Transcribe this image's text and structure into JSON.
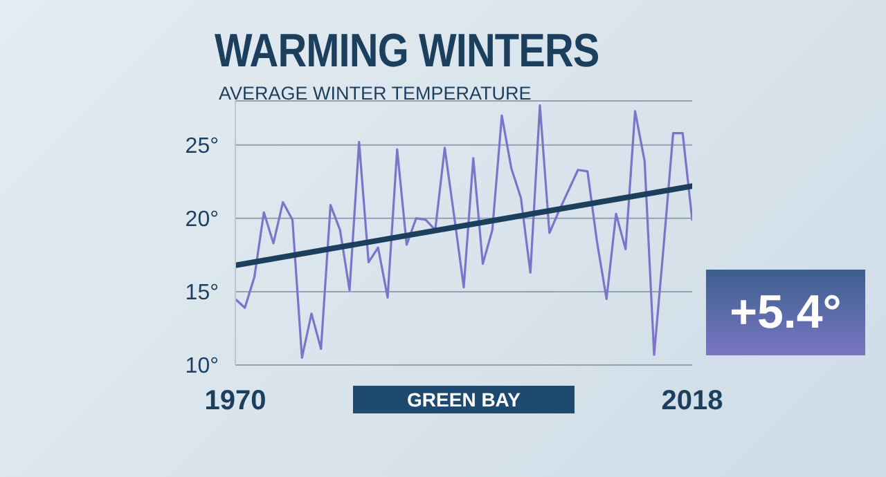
{
  "chart_data": {
    "type": "line",
    "title": "WARMING WINTERS",
    "subtitle": "AVERAGE WINTER TEMPERATURE",
    "annotations": [
      "GREEN BAY",
      "+5.4°"
    ],
    "x": [
      1970,
      1971,
      1972,
      1973,
      1974,
      1975,
      1976,
      1977,
      1978,
      1979,
      1980,
      1981,
      1982,
      1983,
      1984,
      1985,
      1986,
      1987,
      1988,
      1989,
      1990,
      1991,
      1992,
      1993,
      1994,
      1995,
      1996,
      1997,
      1998,
      1999,
      2000,
      2001,
      2002,
      2003,
      2004,
      2005,
      2006,
      2007,
      2008,
      2009,
      2010,
      2011,
      2012,
      2013,
      2014,
      2015,
      2016,
      2017,
      2018
    ],
    "series": [
      {
        "color": "#7b74c9",
        "values": [
          14.5,
          13.9,
          16.0,
          20.4,
          18.3,
          21.1,
          19.9,
          10.5,
          13.5,
          11.1,
          20.9,
          19.2,
          15.1,
          25.2,
          17.0,
          18.0,
          14.6,
          24.7,
          18.2,
          20.0,
          19.9,
          19.2,
          24.8,
          20.1,
          15.3,
          24.1,
          16.9,
          19.2,
          27.0,
          23.4,
          21.4,
          16.3,
          27.7,
          19.0,
          20.5,
          21.9,
          23.3,
          23.2,
          18.4,
          14.5,
          20.3,
          17.9,
          27.3,
          23.9,
          10.7,
          18.1,
          25.8,
          25.8,
          19.9
        ]
      },
      {
        "type": "line",
        "color": "#1d3f5e",
        "x": [
          1970,
          2018
        ],
        "values": [
          16.8,
          22.2
        ]
      }
    ],
    "xlim": [
      1970,
      2018
    ],
    "xticks": [
      1970,
      2018
    ],
    "ylim": [
      10,
      28
    ],
    "yticks": [
      {
        "value": 10,
        "label": "10°"
      },
      {
        "value": 15,
        "label": "15°"
      },
      {
        "value": 20,
        "label": "20°"
      },
      {
        "value": 25,
        "label": "25°"
      }
    ],
    "grid": "y",
    "marker": "none",
    "line_style": "solid"
  }
}
